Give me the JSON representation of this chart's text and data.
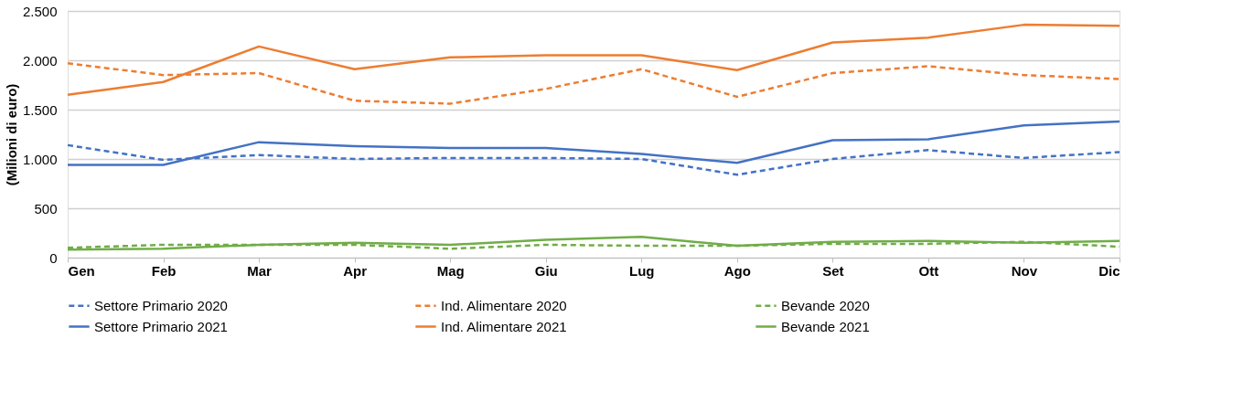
{
  "chart_data": {
    "type": "line",
    "ylabel": "(Milioni di euro)",
    "categories": [
      "Gen",
      "Feb",
      "Mar",
      "Apr",
      "Mag",
      "Giu",
      "Lug",
      "Ago",
      "Set",
      "Ott",
      "Nov",
      "Dic"
    ],
    "ylim": [
      0,
      2500
    ],
    "yticks": [
      0,
      {
        "value": 500,
        "label": "500"
      },
      {
        "value": 1000,
        "label": "1.000"
      },
      {
        "value": 1500,
        "label": "1.500"
      },
      {
        "value": 2000,
        "label": "2.000"
      },
      {
        "value": 2500,
        "label": "2.500"
      }
    ],
    "grid": "y",
    "legend": "bottom",
    "marker": "none",
    "series": [
      {
        "name": "Settore Primario 2020",
        "color": "#4472c4",
        "line_style": "dashed",
        "values": [
          1140,
          990,
          1040,
          1000,
          1010,
          1010,
          1000,
          840,
          1000,
          1090,
          1010,
          1070
        ]
      },
      {
        "name": "Ind. Alimentare 2020",
        "color": "#ed7d31",
        "line_style": "dashed",
        "values": [
          1970,
          1850,
          1870,
          1590,
          1560,
          1710,
          1910,
          1630,
          1870,
          1940,
          1850,
          1810
        ]
      },
      {
        "name": "Bevande 2020",
        "color": "#70ad47",
        "line_style": "dashed",
        "values": [
          100,
          130,
          130,
          130,
          90,
          130,
          120,
          120,
          140,
          140,
          160,
          110
        ]
      },
      {
        "name": "Settore Primario 2021",
        "color": "#4472c4",
        "line_style": "solid",
        "values": [
          940,
          940,
          1170,
          1130,
          1110,
          1110,
          1050,
          960,
          1190,
          1200,
          1340,
          1380
        ]
      },
      {
        "name": "Ind. Alimentare 2021",
        "color": "#ed7d31",
        "line_style": "solid",
        "values": [
          1650,
          1780,
          2140,
          1910,
          2030,
          2050,
          2050,
          1900,
          2180,
          2230,
          2360,
          2350
        ]
      },
      {
        "name": "Bevande 2021",
        "color": "#70ad47",
        "line_style": "solid",
        "values": [
          80,
          90,
          130,
          150,
          130,
          180,
          210,
          120,
          160,
          170,
          150,
          170
        ]
      }
    ]
  }
}
